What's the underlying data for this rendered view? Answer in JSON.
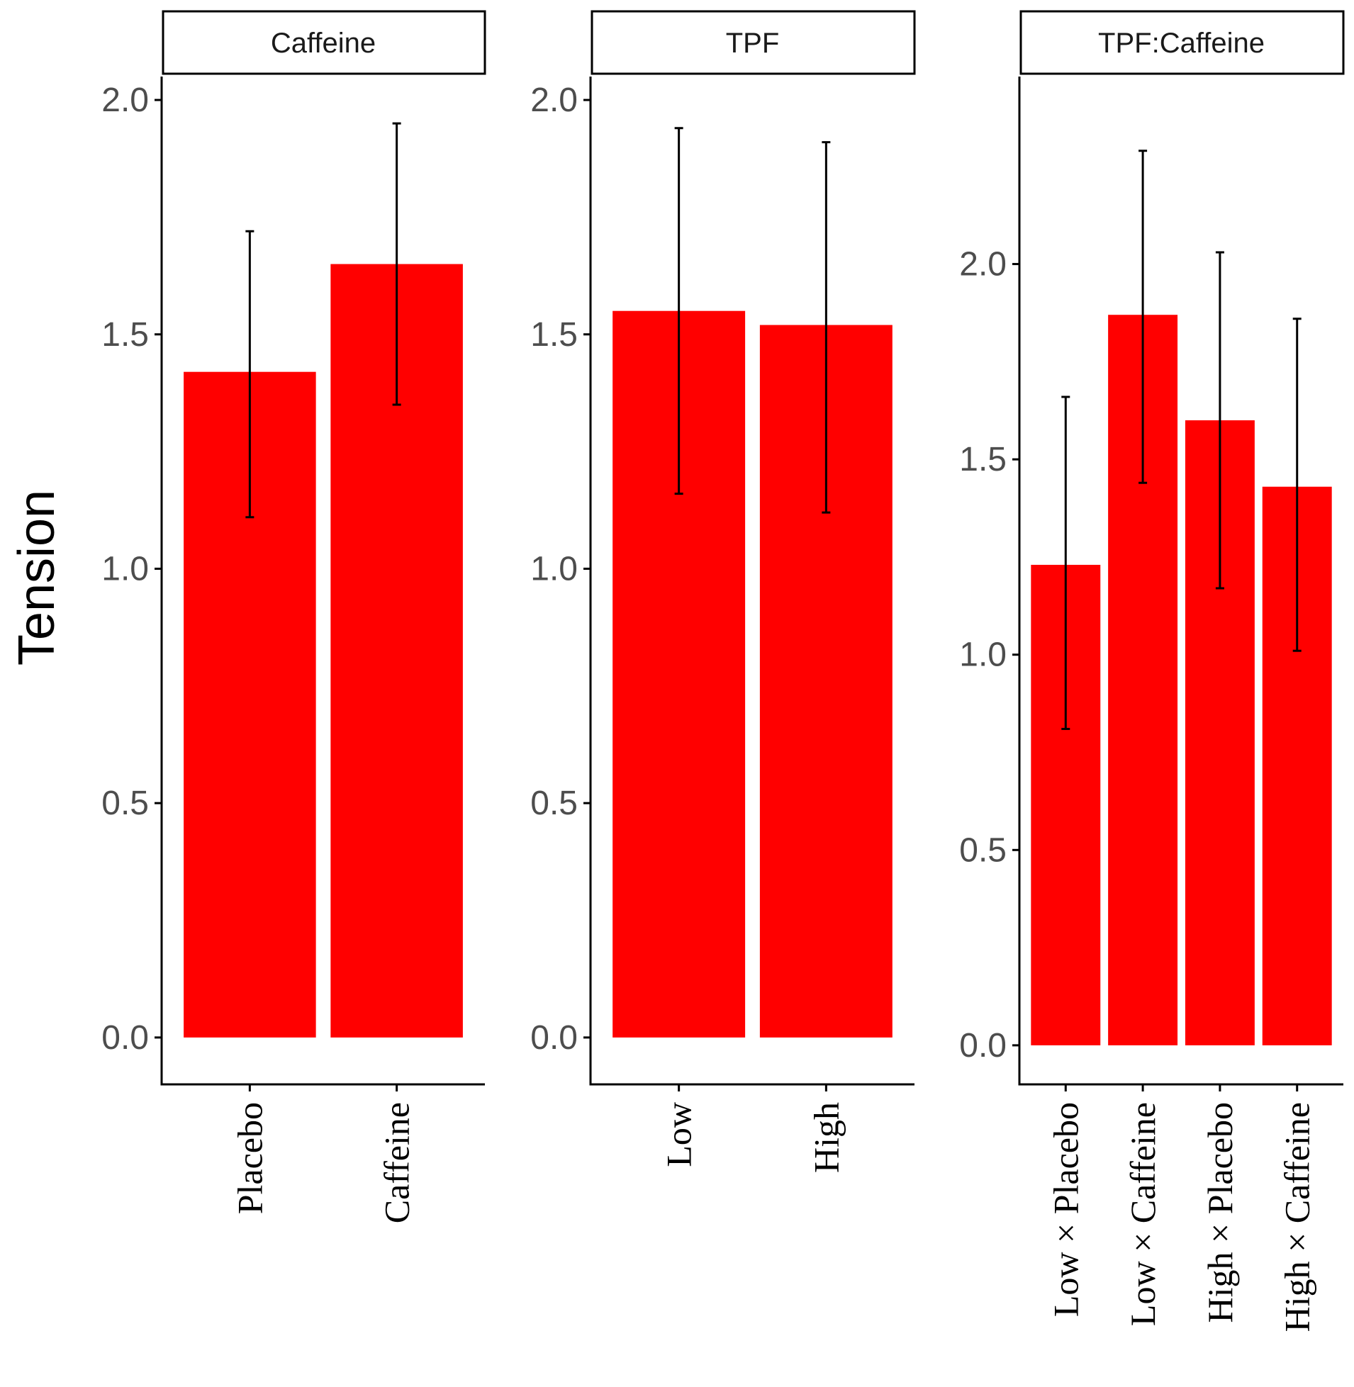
{
  "chart_data": [
    {
      "type": "bar",
      "panel_title": "Caffeine",
      "categories": [
        "Placebo",
        "Caffeine"
      ],
      "values": [
        1.42,
        1.65
      ],
      "error_low": [
        1.11,
        1.35
      ],
      "error_high": [
        1.72,
        1.95
      ],
      "ylim": [
        -0.1,
        2.05
      ],
      "yticks": [
        0.0,
        0.5,
        1.0,
        1.5,
        2.0
      ],
      "ytick_labels": [
        "0.0",
        "0.5",
        "1.0",
        "1.5",
        "2.0"
      ],
      "ylabel": "Tension",
      "bar_color": "#ff0000"
    },
    {
      "type": "bar",
      "panel_title": "TPF",
      "categories": [
        "Low",
        "High"
      ],
      "values": [
        1.55,
        1.52
      ],
      "error_low": [
        1.16,
        1.12
      ],
      "error_high": [
        1.94,
        1.91
      ],
      "ylim": [
        -0.1,
        2.05
      ],
      "yticks": [
        0.0,
        0.5,
        1.0,
        1.5,
        2.0
      ],
      "ytick_labels": [
        "0.0",
        "0.5",
        "1.0",
        "1.5",
        "2.0"
      ],
      "bar_color": "#ff0000"
    },
    {
      "type": "bar",
      "panel_title": "TPF:Caffeine",
      "categories": [
        "Low × Placebo",
        "Low × Caffeine",
        "High × Placebo",
        "High × Caffeine"
      ],
      "values": [
        1.23,
        1.87,
        1.6,
        1.43
      ],
      "error_low": [
        0.81,
        1.44,
        1.17,
        1.01
      ],
      "error_high": [
        1.66,
        2.29,
        2.03,
        1.86
      ],
      "ylim": [
        -0.1,
        2.48
      ],
      "yticks": [
        0.0,
        0.5,
        1.0,
        1.5,
        2.0
      ],
      "ytick_labels": [
        "0.0",
        "0.5",
        "1.0",
        "1.5",
        "2.0"
      ],
      "bar_color": "#ff0000"
    }
  ]
}
